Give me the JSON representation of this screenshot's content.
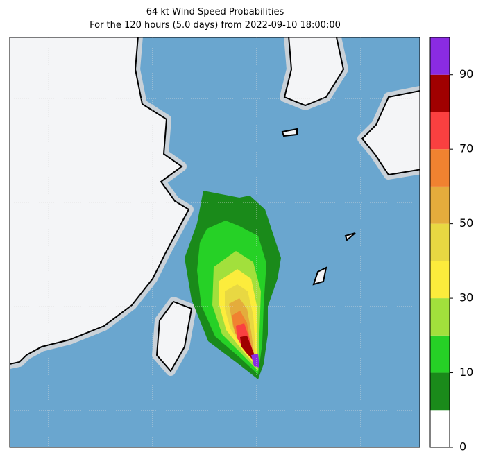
{
  "chart_data": {
    "type": "filled-contour-map",
    "title": "64 kt Wind Speed Probabilities",
    "subtitle": "For the 120 hours (5.0 days) from 2022-09-10 18:00:00",
    "colorbar": {
      "boundaries": [
        0,
        5,
        10,
        20,
        30,
        40,
        50,
        60,
        70,
        80,
        90,
        100
      ],
      "colors": [
        "#ffffff",
        "#1a8a1a",
        "#26d126",
        "#a2e03c",
        "#fcec3c",
        "#e8d842",
        "#e4ac3c",
        "#f08230",
        "#fa4040",
        "#a00000",
        "#8a2be2"
      ],
      "ticks": [
        0,
        10,
        30,
        50,
        70,
        90
      ]
    }
  }
}
